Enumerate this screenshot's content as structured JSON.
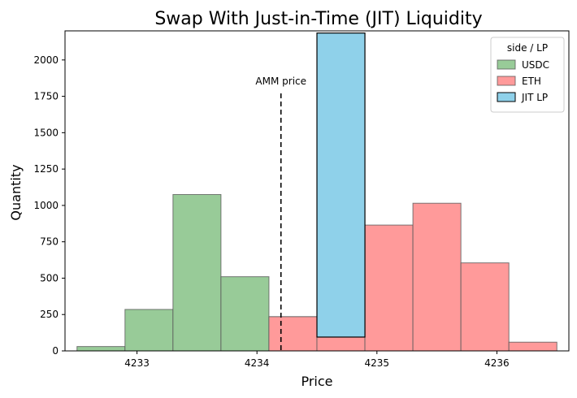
{
  "chart_data": {
    "type": "bar",
    "title": "Swap With Just-in-Time (JIT) Liquidity",
    "xlabel": "Price",
    "ylabel": "Quantity",
    "xlim": [
      4232.4,
      4236.6
    ],
    "ylim": [
      0,
      2200
    ],
    "x_ticks": [
      4233,
      4234,
      4235,
      4236
    ],
    "y_ticks": [
      0,
      250,
      500,
      750,
      1000,
      1250,
      1500,
      1750,
      2000
    ],
    "grid": false,
    "legend": {
      "title": "side / LP",
      "position": "top-right"
    },
    "series": [
      {
        "name": "USDC",
        "color": "#98CB98",
        "edge": "#5a5a5a",
        "bars": [
          {
            "x0": 4232.5,
            "x1": 4232.9,
            "value": 30
          },
          {
            "x0": 4232.9,
            "x1": 4233.3,
            "value": 285
          },
          {
            "x0": 4233.3,
            "x1": 4233.7,
            "value": 1075
          },
          {
            "x0": 4233.7,
            "x1": 4234.1,
            "value": 510
          },
          {
            "x0": 4234.1,
            "x1": 4234.5,
            "value": 235
          }
        ]
      },
      {
        "name": "ETH",
        "color": "#FF9A9A",
        "edge": "#5a5a5a",
        "bars": [
          {
            "x0": 4234.1,
            "x1": 4234.5,
            "value": 235
          },
          {
            "x0": 4234.5,
            "x1": 4234.9,
            "value": 95
          },
          {
            "x0": 4234.9,
            "x1": 4235.3,
            "value": 865
          },
          {
            "x0": 4235.3,
            "x1": 4235.7,
            "value": 1015
          },
          {
            "x0": 4235.7,
            "x1": 4236.1,
            "value": 605
          },
          {
            "x0": 4236.1,
            "x1": 4236.5,
            "value": 60
          }
        ]
      },
      {
        "name": "JIT LP",
        "color": "#8FD1EA",
        "edge": "#000000",
        "bars": [
          {
            "x0": 4234.5,
            "x1": 4234.9,
            "base": 95,
            "value": 2090
          }
        ]
      }
    ],
    "annotations": [
      {
        "text": "AMM price",
        "x": 4234.2,
        "y_top": 1770
      }
    ]
  }
}
